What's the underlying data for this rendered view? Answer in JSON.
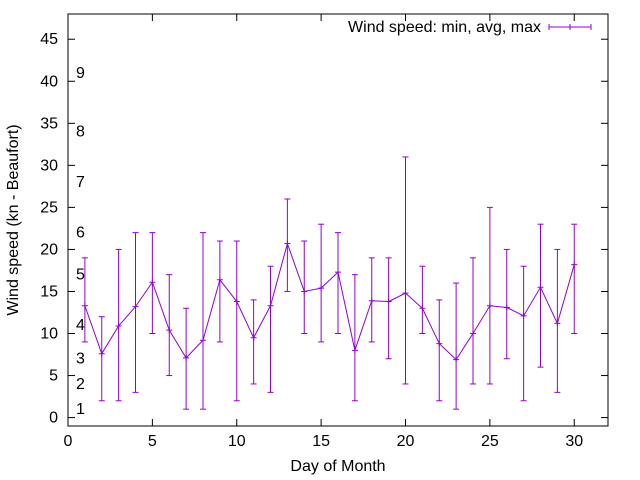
{
  "chart_data": {
    "type": "line",
    "title": "",
    "xlabel": "Day of Month",
    "ylabel": "Wind speed (kn - Beaufort)",
    "xlim": [
      0,
      32
    ],
    "ylim": [
      -1,
      48
    ],
    "x_ticks": [
      0,
      5,
      10,
      15,
      20,
      25,
      30
    ],
    "y_ticks": [
      0,
      5,
      10,
      15,
      20,
      25,
      30,
      35,
      40,
      45
    ],
    "grid": false,
    "legend_position": "top-right",
    "series_color": "#9400d3",
    "series": [
      {
        "name": "Wind speed: min, avg, max",
        "x": [
          1,
          2,
          3,
          4,
          5,
          6,
          7,
          8,
          9,
          10,
          11,
          12,
          13,
          14,
          15,
          16,
          17,
          18,
          19,
          20,
          21,
          22,
          23,
          24,
          25,
          26,
          27,
          28,
          29,
          30
        ],
        "avg": [
          13.3,
          7.6,
          10.9,
          13.2,
          16.1,
          10.4,
          7.1,
          9.2,
          16.4,
          13.8,
          9.5,
          13.3,
          20.7,
          15.0,
          15.4,
          17.3,
          8.0,
          13.9,
          13.8,
          14.8,
          13.0,
          8.8,
          6.9,
          10.0,
          13.3,
          13.1,
          12.1,
          15.5,
          11.2,
          18.2
        ],
        "min": [
          9,
          2,
          2,
          3,
          10,
          5,
          1,
          1,
          9,
          2,
          4,
          3,
          15,
          10,
          9,
          10,
          2,
          9,
          7,
          4,
          10,
          2,
          1,
          4,
          4,
          7,
          2,
          6,
          3,
          10
        ],
        "max": [
          19,
          12,
          20,
          22,
          22,
          17,
          13,
          22,
          21,
          21,
          14,
          18,
          26,
          21,
          23,
          22,
          17,
          19,
          19,
          31,
          18,
          14,
          16,
          19,
          25,
          20,
          18,
          23,
          20,
          23
        ]
      }
    ],
    "annotations": [
      {
        "text": "1",
        "y": 1
      },
      {
        "text": "2",
        "y": 4
      },
      {
        "text": "3",
        "y": 7
      },
      {
        "text": "4",
        "y": 11
      },
      {
        "text": "5",
        "y": 17
      },
      {
        "text": "6",
        "y": 22
      },
      {
        "text": "7",
        "y": 28
      },
      {
        "text": "8",
        "y": 34
      },
      {
        "text": "9",
        "y": 41
      }
    ]
  }
}
